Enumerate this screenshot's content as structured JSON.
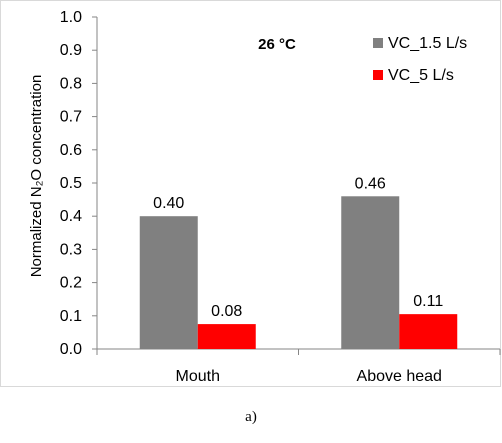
{
  "chart_data": {
    "type": "bar",
    "title": "26 °C",
    "ylabel": "Normalized N₂O concentration",
    "xlabel": "",
    "categories": [
      "Mouth",
      "Above head"
    ],
    "series": [
      {
        "name": "VC_1.5 L/s",
        "color": "#808080",
        "values": [
          0.4,
          0.46
        ],
        "labels": [
          "0.40",
          "0.46"
        ]
      },
      {
        "name": "VC_5 L/s",
        "color": "#ff0000",
        "values": [
          0.075,
          0.105
        ],
        "labels": [
          "0.08",
          "0.11"
        ]
      }
    ],
    "ylim": [
      0,
      1.0
    ],
    "yticks": [
      "0.0",
      "0.1",
      "0.2",
      "0.3",
      "0.4",
      "0.5",
      "0.6",
      "0.7",
      "0.8",
      "0.9",
      "1.0"
    ],
    "grid": false,
    "legend_position": "top-right"
  },
  "caption": "a)"
}
